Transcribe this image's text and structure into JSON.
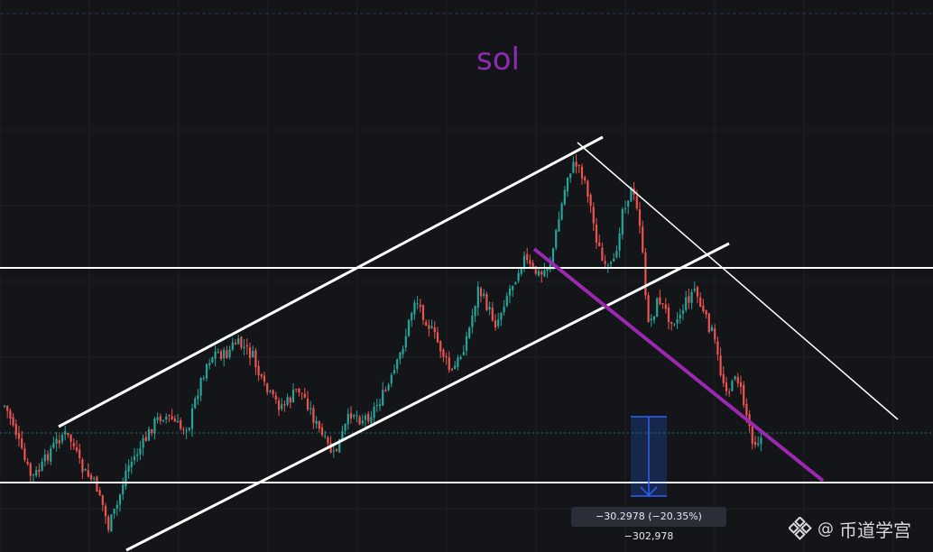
{
  "title": "sol",
  "measure": {
    "label": "−30.2978 (−20.35%) −302,978",
    "change": -30.2978,
    "change_pct": -20.35
  },
  "watermark": {
    "at": "@",
    "text": "币道学宫",
    "icon": "binance-square-logo-icon"
  },
  "colors": {
    "background": "#131519",
    "up": "#26a69a",
    "down": "#ef5350",
    "trendline": "#ffffff",
    "purple_line": "#9c27b0",
    "measure": "#2962ff"
  },
  "chart_data": {
    "type": "candlestick",
    "grid": true,
    "annotations": [
      "ascending-channel",
      "horizontal-resistance",
      "horizontal-support",
      "descending-trendline",
      "purple-trendline",
      "price-range-measure"
    ]
  }
}
